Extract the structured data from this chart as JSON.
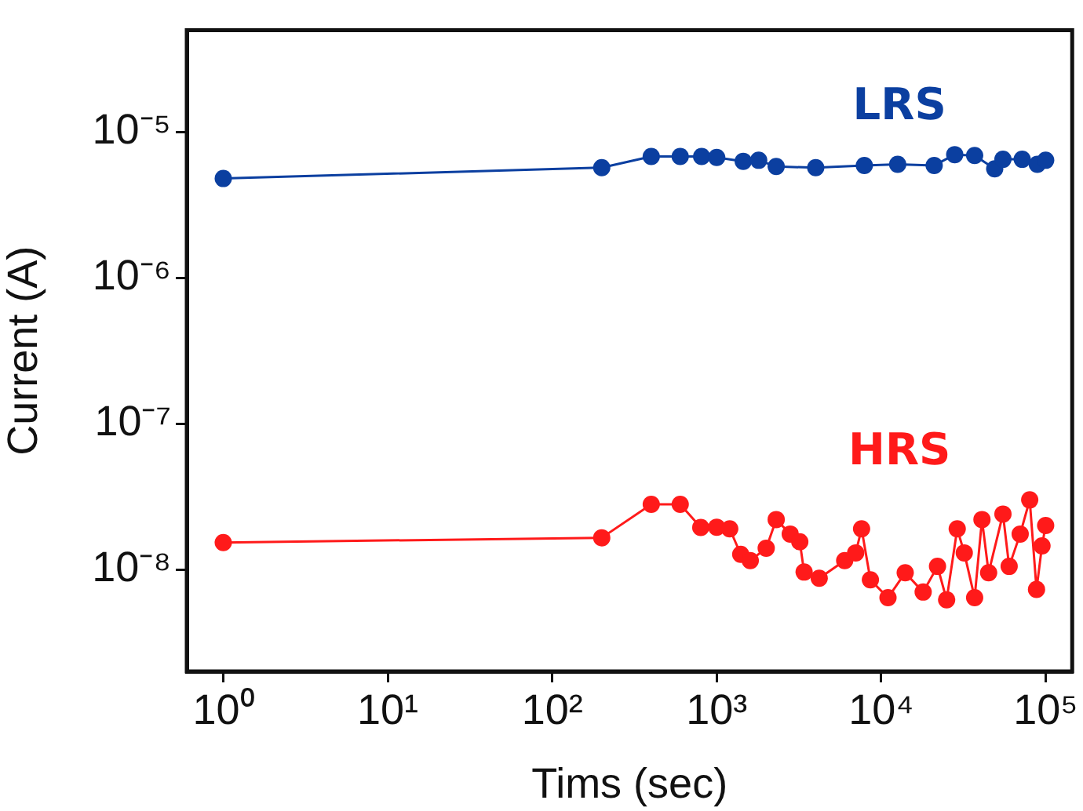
{
  "chart_data": {
    "type": "line",
    "xlabel": "Tims (sec)",
    "ylabel": "Current (A)",
    "log": "xy",
    "grid": false,
    "legend": false,
    "marker": "circle",
    "line_style": "solid",
    "xlim": [
      0.6,
      145000
    ],
    "ylim": [
      2e-09,
      5e-05
    ],
    "xticks": [
      {
        "value": 1,
        "label": "10⁰"
      },
      {
        "value": 10,
        "label": "10¹"
      },
      {
        "value": 100,
        "label": "10²"
      },
      {
        "value": 1000,
        "label": "10³"
      },
      {
        "value": 10000,
        "label": "10⁴"
      },
      {
        "value": 100000,
        "label": "10⁵"
      }
    ],
    "yticks": [
      {
        "value": 1e-08,
        "label": "10⁻⁸"
      },
      {
        "value": 1e-07,
        "label": "10⁻⁷"
      },
      {
        "value": 1e-06,
        "label": "10⁻⁶"
      },
      {
        "value": 1e-05,
        "label": "10⁻⁵"
      }
    ],
    "series": [
      {
        "name": "LRS",
        "color": "#0b3fa0",
        "x": [
          1,
          200,
          400,
          600,
          810,
          1000,
          1450,
          1800,
          2300,
          4000,
          7900,
          12600,
          21000,
          28000,
          37000,
          49000,
          55000,
          72000,
          89000,
          100000
        ],
        "values": [
          4.8e-06,
          5.7e-06,
          6.8e-06,
          6.8e-06,
          6.8e-06,
          6.7e-06,
          6.3e-06,
          6.4e-06,
          5.8e-06,
          5.7e-06,
          5.9e-06,
          6e-06,
          5.9e-06,
          7e-06,
          6.9e-06,
          5.6e-06,
          6.5e-06,
          6.5e-06,
          6e-06,
          6.4e-06
        ]
      },
      {
        "name": "HRS",
        "color": "#ff1a1a",
        "x": [
          1,
          200,
          400,
          600,
          800,
          1000,
          1200,
          1400,
          1600,
          2000,
          2300,
          2800,
          3200,
          3400,
          4200,
          6000,
          7000,
          7600,
          8600,
          11000,
          14000,
          18000,
          22000,
          25000,
          29000,
          32000,
          37000,
          41000,
          45000,
          55000,
          60000,
          70000,
          80000,
          88000,
          95000,
          100000
        ],
        "values": [
          1.53e-08,
          1.65e-08,
          2.8e-08,
          2.8e-08,
          1.94e-08,
          1.95e-08,
          1.9e-08,
          1.27e-08,
          1.15e-08,
          1.4e-08,
          2.2e-08,
          1.75e-08,
          1.55e-08,
          9.6e-09,
          8.7e-09,
          1.15e-08,
          1.3e-08,
          1.9e-08,
          8.5e-09,
          6.4e-09,
          9.5e-09,
          7e-09,
          1.05e-08,
          6.2e-09,
          1.9e-08,
          1.3e-08,
          6.4e-09,
          2.2e-08,
          9.5e-09,
          2.4e-08,
          1.05e-08,
          1.75e-08,
          3e-08,
          7.3e-09,
          1.45e-08,
          2e-08
        ]
      }
    ]
  }
}
